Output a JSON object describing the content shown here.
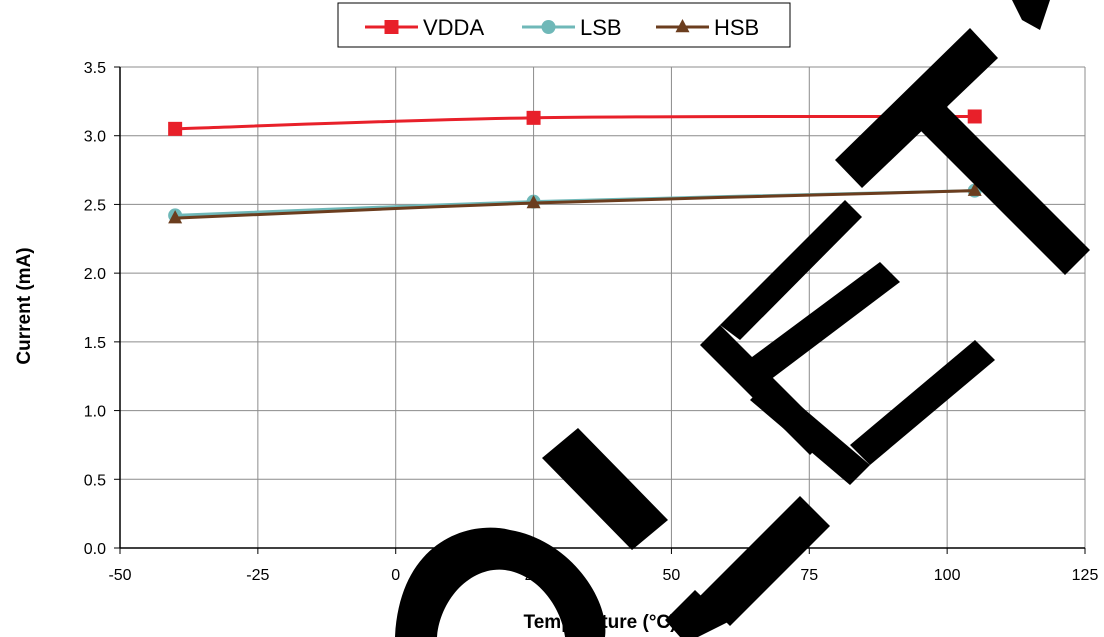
{
  "chart_data": {
    "type": "line",
    "xlabel": "Temperature (°C)",
    "ylabel": "Current (mA)",
    "xlim": [
      -50,
      125
    ],
    "ylim": [
      0,
      3.5
    ],
    "xticks": [
      -50,
      -25,
      0,
      25,
      50,
      75,
      100,
      125
    ],
    "yticks": [
      0,
      0.5,
      1,
      1.5,
      2,
      2.5,
      3,
      3.5
    ],
    "x_tick_labels": [
      "-50",
      "-25",
      "0",
      "25",
      "50",
      "75",
      "100",
      "125"
    ],
    "y_tick_labels": [
      "0.0",
      "0.5",
      "1.0",
      "1.5",
      "2.0",
      "2.5",
      "3.0",
      "3.5"
    ],
    "grid": true,
    "legend_position": "top-center",
    "watermark": "OBSOLETE",
    "series": [
      {
        "name": "VDDA",
        "color": "#e8202a",
        "marker": "square",
        "x": [
          -40,
          25,
          105
        ],
        "y": [
          3.05,
          3.13,
          3.14
        ]
      },
      {
        "name": "LSB",
        "color": "#6fb8b8",
        "marker": "circle",
        "x": [
          -40,
          25,
          105
        ],
        "y": [
          2.42,
          2.52,
          2.6
        ]
      },
      {
        "name": "HSB",
        "color": "#6b3d1e",
        "marker": "triangle",
        "x": [
          -40,
          25,
          105
        ],
        "y": [
          2.4,
          2.51,
          2.6
        ]
      }
    ]
  }
}
